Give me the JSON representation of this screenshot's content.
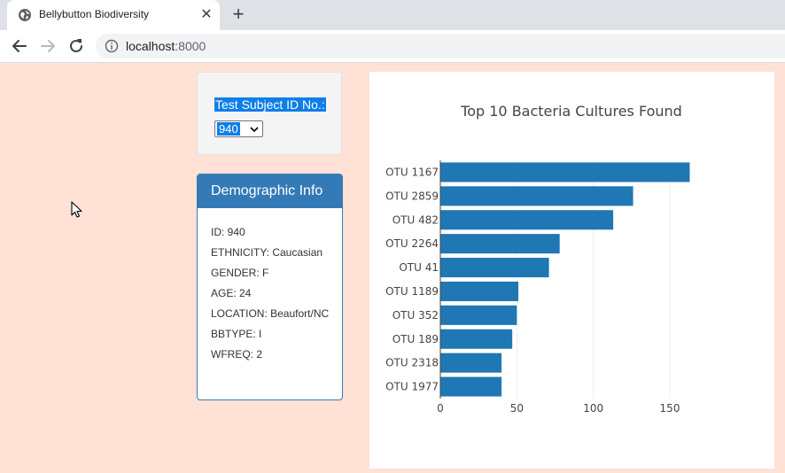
{
  "browser": {
    "tab_title": "Bellybutton Biodiversity",
    "url_host": "localhost",
    "url_port": ":8000"
  },
  "selector": {
    "label": "Test Subject ID No.:",
    "value": "940"
  },
  "demographics": {
    "title": "Demographic Info",
    "items": [
      "ID: 940",
      "ETHNICITY: Caucasian",
      "GENDER: F",
      "AGE: 24",
      "LOCATION: Beaufort/NC",
      "BBTYPE: I",
      "WFREQ: 2"
    ]
  },
  "chart_data": {
    "type": "bar",
    "orientation": "horizontal",
    "title": "Top 10 Bacteria Cultures Found",
    "categories": [
      "OTU 1167",
      "OTU 2859",
      "OTU 482",
      "OTU 2264",
      "OTU 41",
      "OTU 1189",
      "OTU 352",
      "OTU 189",
      "OTU 2318",
      "OTU 1977"
    ],
    "values": [
      163,
      126,
      113,
      78,
      71,
      51,
      50,
      47,
      40,
      40
    ],
    "xlim": [
      0,
      172
    ],
    "xticks": [
      0,
      50,
      100,
      150
    ],
    "grid": true,
    "bar_color": "#1f77b4"
  },
  "colors": {
    "page_background": "#ffe1d6",
    "panel_primary": "#337ab7",
    "selection_highlight": "#0f7ee8"
  }
}
